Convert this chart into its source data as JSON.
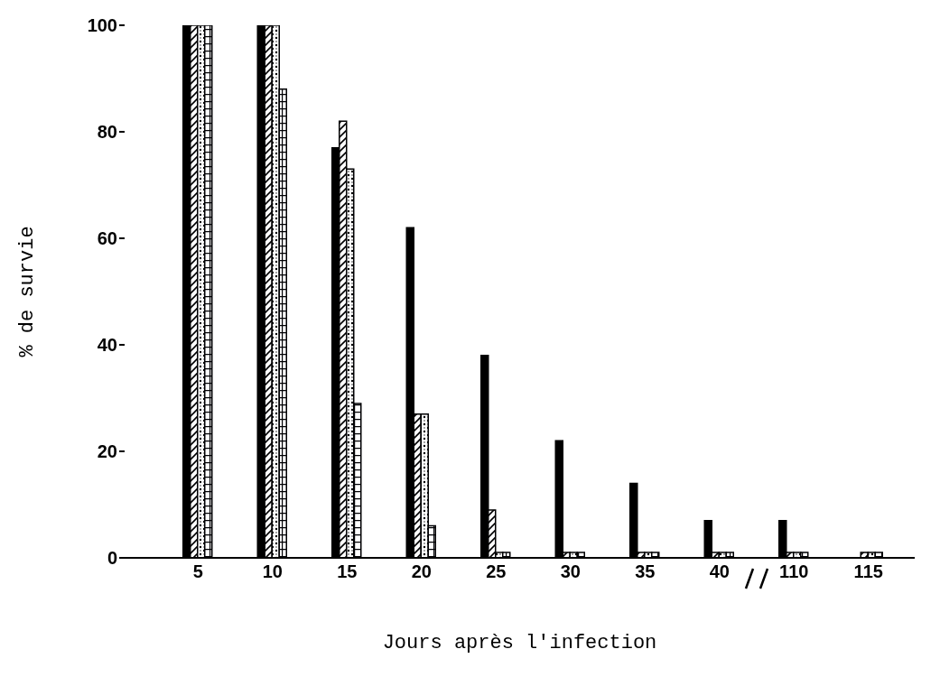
{
  "chart_data": {
    "type": "bar",
    "xlabel": "Jours après l'infection",
    "ylabel": "% de survie",
    "categories": [
      "5",
      "10",
      "15",
      "20",
      "25",
      "30",
      "35",
      "40",
      "110",
      "115"
    ],
    "series": [
      {
        "color": "#000000",
        "values": [
          100,
          100,
          77,
          62,
          38,
          22,
          14,
          7,
          7,
          0
        ]
      },
      {
        "color": "#000001",
        "values": [
          100,
          100,
          82,
          27,
          9,
          1,
          1,
          1,
          1,
          1
        ]
      },
      {
        "color": "#000002",
        "values": [
          100,
          100,
          73,
          27,
          1,
          1,
          1,
          1,
          1,
          1
        ]
      },
      {
        "color": "#000003",
        "values": [
          100,
          88,
          29,
          6,
          1,
          1,
          1,
          1,
          1,
          1
        ]
      }
    ],
    "ylim": [
      0,
      100
    ],
    "yticks": [
      0,
      20,
      40,
      60,
      80,
      100
    ],
    "grid": false,
    "legend": false
  }
}
